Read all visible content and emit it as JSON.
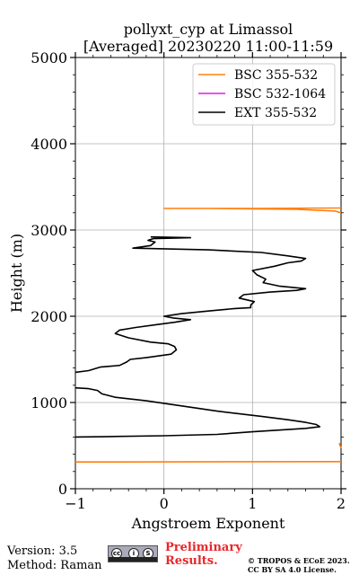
{
  "chart_data": {
    "type": "line",
    "title": "pollyxt_cyp at Limassol",
    "subtitle": "[Averaged] 20230220 11:00-11:59",
    "xlabel": "Angstroem Exponent",
    "ylabel": "Height (m)",
    "xlim": [
      -1,
      2
    ],
    "ylim": [
      0,
      5000
    ],
    "xticks": [
      -1,
      0,
      1,
      2
    ],
    "yticks": [
      0,
      1000,
      2000,
      3000,
      4000,
      5000
    ],
    "grid": true,
    "legend_position": "top-right",
    "series": [
      {
        "name": "BSC 355-532",
        "color": "#ff7f0e",
        "points": [
          [
            -1,
            310
          ],
          [
            2,
            315
          ],
          [
            null,
            null
          ],
          [
            2.0,
            470
          ],
          [
            1.98,
            530
          ],
          [
            null,
            null
          ],
          [
            2.0,
            3200
          ],
          [
            1.93,
            3220
          ],
          [
            1.5,
            3240
          ],
          [
            0.5,
            3250
          ],
          [
            0.0,
            3250
          ],
          [
            1.0,
            3250
          ],
          [
            2.0,
            3255
          ]
        ]
      },
      {
        "name": "BSC 532-1064",
        "color": "#e31ae3",
        "points": []
      },
      {
        "name": "EXT 355-532",
        "color": "#000000",
        "points": [
          [
            -1,
            600
          ],
          [
            -0.6,
            605
          ],
          [
            0.0,
            615
          ],
          [
            0.6,
            630
          ],
          [
            1.0,
            660
          ],
          [
            1.3,
            680
          ],
          [
            1.6,
            700
          ],
          [
            1.76,
            720
          ],
          [
            1.72,
            745
          ],
          [
            1.6,
            770
          ],
          [
            1.4,
            800
          ],
          [
            1.1,
            840
          ],
          [
            0.6,
            900
          ],
          [
            0.2,
            960
          ],
          [
            -0.2,
            1020
          ],
          [
            -0.55,
            1060
          ],
          [
            -0.7,
            1100
          ],
          [
            -0.75,
            1140
          ],
          [
            -0.85,
            1160
          ],
          [
            -1.0,
            1170
          ],
          [
            null,
            null
          ],
          [
            -1.0,
            1350
          ],
          [
            -0.85,
            1370
          ],
          [
            -0.72,
            1410
          ],
          [
            -0.5,
            1430
          ],
          [
            -0.42,
            1470
          ],
          [
            -0.38,
            1500
          ],
          [
            -0.2,
            1520
          ],
          [
            0.08,
            1560
          ],
          [
            0.14,
            1610
          ],
          [
            0.12,
            1650
          ],
          [
            0.05,
            1680
          ],
          [
            -0.15,
            1700
          ],
          [
            -0.4,
            1750
          ],
          [
            -0.55,
            1800
          ],
          [
            -0.5,
            1840
          ],
          [
            -0.32,
            1870
          ],
          [
            -0.1,
            1900
          ],
          [
            0.12,
            1930
          ],
          [
            0.3,
            1960
          ],
          [
            0.1,
            1980
          ],
          [
            0.0,
            2000
          ],
          [
            0.2,
            2030
          ],
          [
            0.5,
            2060
          ],
          [
            0.8,
            2090
          ],
          [
            0.98,
            2100
          ],
          [
            0.98,
            2130
          ],
          [
            1.02,
            2170
          ],
          [
            0.85,
            2210
          ],
          [
            0.9,
            2250
          ],
          [
            1.2,
            2280
          ],
          [
            1.5,
            2300
          ],
          [
            1.6,
            2320
          ],
          [
            1.3,
            2350
          ],
          [
            1.12,
            2390
          ],
          [
            1.15,
            2430
          ],
          [
            1.05,
            2480
          ],
          [
            1.0,
            2530
          ],
          [
            1.25,
            2580
          ],
          [
            1.4,
            2620
          ],
          [
            1.55,
            2640
          ],
          [
            1.6,
            2670
          ],
          [
            1.4,
            2700
          ],
          [
            1.1,
            2740
          ],
          [
            0.5,
            2770
          ],
          [
            -0.35,
            2790
          ],
          [
            -0.15,
            2820
          ],
          [
            -0.1,
            2860
          ],
          [
            -0.18,
            2880
          ],
          [
            -0.12,
            2900
          ],
          [
            0.3,
            2910
          ],
          [
            -0.15,
            2920
          ]
        ]
      }
    ]
  },
  "footer": {
    "version": "Version: 3.5",
    "method": "Method: Raman",
    "license_badge_icons": [
      "cc-icon",
      "by-icon",
      "sa-icon"
    ],
    "license_badge_text": "BY SA",
    "preliminary_line1": "Preliminary",
    "preliminary_line2": "Results.",
    "copyright_line1": "© TROPOS & ECoE 2023.",
    "copyright_line2": "CC BY SA 4.0 License."
  }
}
